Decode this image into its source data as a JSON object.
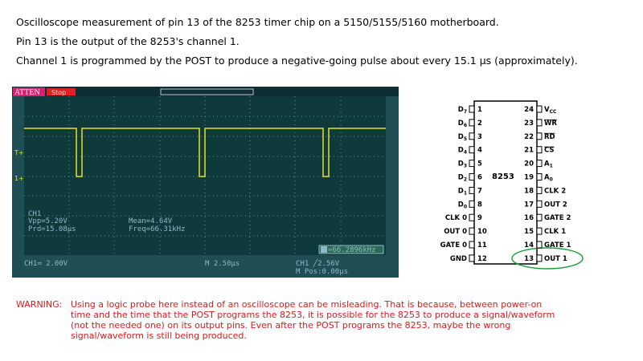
{
  "intro": [
    "Oscilloscope measurement of pin 13 of the 8253 timer chip on a 5150/5155/5160 motherboard.",
    "Pin 13 is the output of the 8253's channel 1.",
    "Channel 1 is programmed by the POST to produce a negative-going pulse about every 15.1 µs (approximately)."
  ],
  "scope": {
    "atten": "ATTEN",
    "status": "Stop",
    "trig_marker": "T+",
    "ch_marker": "1+",
    "ch_label": "CH1",
    "vpp": "Vpp=5.20V",
    "prd": "Prd=15.08µs",
    "mean": "Mean=4.64V",
    "freq": "Freq=66.31kHz",
    "counter": "=66.2896kHz",
    "ch_scale": "CH1≕ 2.00V",
    "time_scale": "M 2.50µs",
    "trigger": "CH1 ╱2.56V",
    "mpos": "M Pos:0.00µs"
  },
  "chip": {
    "name": "8253",
    "left": [
      {
        "num": "1",
        "name": "D",
        "sub": "7"
      },
      {
        "num": "2",
        "name": "D",
        "sub": "6"
      },
      {
        "num": "3",
        "name": "D",
        "sub": "5"
      },
      {
        "num": "4",
        "name": "D",
        "sub": "4"
      },
      {
        "num": "5",
        "name": "D",
        "sub": "3"
      },
      {
        "num": "6",
        "name": "D",
        "sub": "2"
      },
      {
        "num": "7",
        "name": "D",
        "sub": "1"
      },
      {
        "num": "8",
        "name": "D",
        "sub": "0"
      },
      {
        "num": "9",
        "name": "CLK 0",
        "sub": ""
      },
      {
        "num": "10",
        "name": "OUT 0",
        "sub": ""
      },
      {
        "num": "11",
        "name": "GATE 0",
        "sub": ""
      },
      {
        "num": "12",
        "name": "GND",
        "sub": ""
      }
    ],
    "right": [
      {
        "num": "24",
        "name": "V",
        "sub": "CC",
        "bar": false
      },
      {
        "num": "23",
        "name": "WR",
        "sub": "",
        "bar": true
      },
      {
        "num": "22",
        "name": "RD",
        "sub": "",
        "bar": true
      },
      {
        "num": "21",
        "name": "CS",
        "sub": "",
        "bar": true
      },
      {
        "num": "20",
        "name": "A",
        "sub": "1",
        "bar": false
      },
      {
        "num": "19",
        "name": "A",
        "sub": "0",
        "bar": false
      },
      {
        "num": "18",
        "name": "CLK 2",
        "sub": "",
        "bar": false
      },
      {
        "num": "17",
        "name": "OUT 2",
        "sub": "",
        "bar": false
      },
      {
        "num": "16",
        "name": "GATE 2",
        "sub": "",
        "bar": false
      },
      {
        "num": "15",
        "name": "CLK 1",
        "sub": "",
        "bar": false
      },
      {
        "num": "14",
        "name": "GATE 1",
        "sub": "",
        "bar": false
      },
      {
        "num": "13",
        "name": "OUT 1",
        "sub": "",
        "bar": false
      }
    ]
  },
  "warning": {
    "label": "WARNING:",
    "lines": [
      "Using a logic probe here instead of an oscilloscope can be misleading. That is because, between power-on",
      "time and the time that the POST programs the 8253, it is possible for the 8253 to produce a signal/waveform",
      "(not the needed one) on its output pins. Even after the POST programs the 8253, maybe the wrong",
      "signal/waveform is still being produced."
    ]
  }
}
